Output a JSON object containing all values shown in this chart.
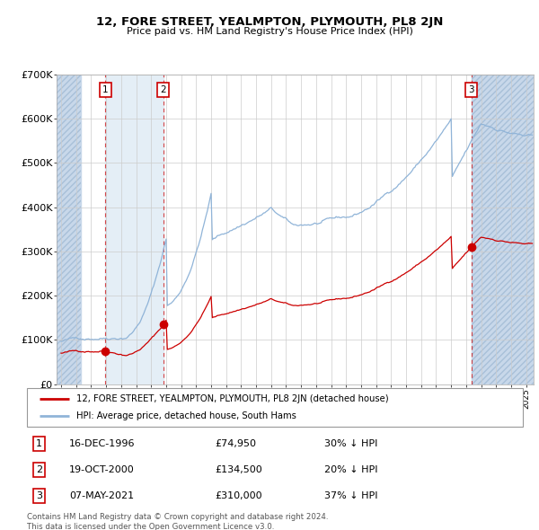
{
  "title": "12, FORE STREET, YEALMPTON, PLYMOUTH, PL8 2JN",
  "subtitle": "Price paid vs. HM Land Registry's House Price Index (HPI)",
  "ylim": [
    0,
    700000
  ],
  "yticks": [
    0,
    100000,
    200000,
    300000,
    400000,
    500000,
    600000,
    700000
  ],
  "ytick_labels": [
    "£0",
    "£100K",
    "£200K",
    "£300K",
    "£400K",
    "£500K",
    "£600K",
    "£700K"
  ],
  "xlim_start": 1993.7,
  "xlim_end": 2025.5,
  "hpi_color": "#90b4d8",
  "price_color": "#cc0000",
  "hatch_color": "#c8d8ea",
  "shade_color": "#deeaf4",
  "grid_color": "#cccccc",
  "sale_points": [
    {
      "year": 1996.96,
      "price": 74950,
      "label": "1"
    },
    {
      "year": 2000.8,
      "price": 134500,
      "label": "2"
    },
    {
      "year": 2021.35,
      "price": 310000,
      "label": "3"
    }
  ],
  "hatch_left_end": 1995.3,
  "shade_left_start": 1996.96,
  "shade_left_end": 2000.8,
  "hatch_right_start": 2021.35,
  "legend_price_label": "12, FORE STREET, YEALMPTON, PLYMOUTH, PL8 2JN (detached house)",
  "legend_hpi_label": "HPI: Average price, detached house, South Hams",
  "table_rows": [
    {
      "num": "1",
      "date": "16-DEC-1996",
      "price": "£74,950",
      "change": "30% ↓ HPI"
    },
    {
      "num": "2",
      "date": "19-OCT-2000",
      "price": "£134,500",
      "change": "20% ↓ HPI"
    },
    {
      "num": "3",
      "date": "07-MAY-2021",
      "price": "£310,000",
      "change": "37% ↓ HPI"
    }
  ],
  "footer": "Contains HM Land Registry data © Crown copyright and database right 2024.\nThis data is licensed under the Open Government Licence v3.0."
}
